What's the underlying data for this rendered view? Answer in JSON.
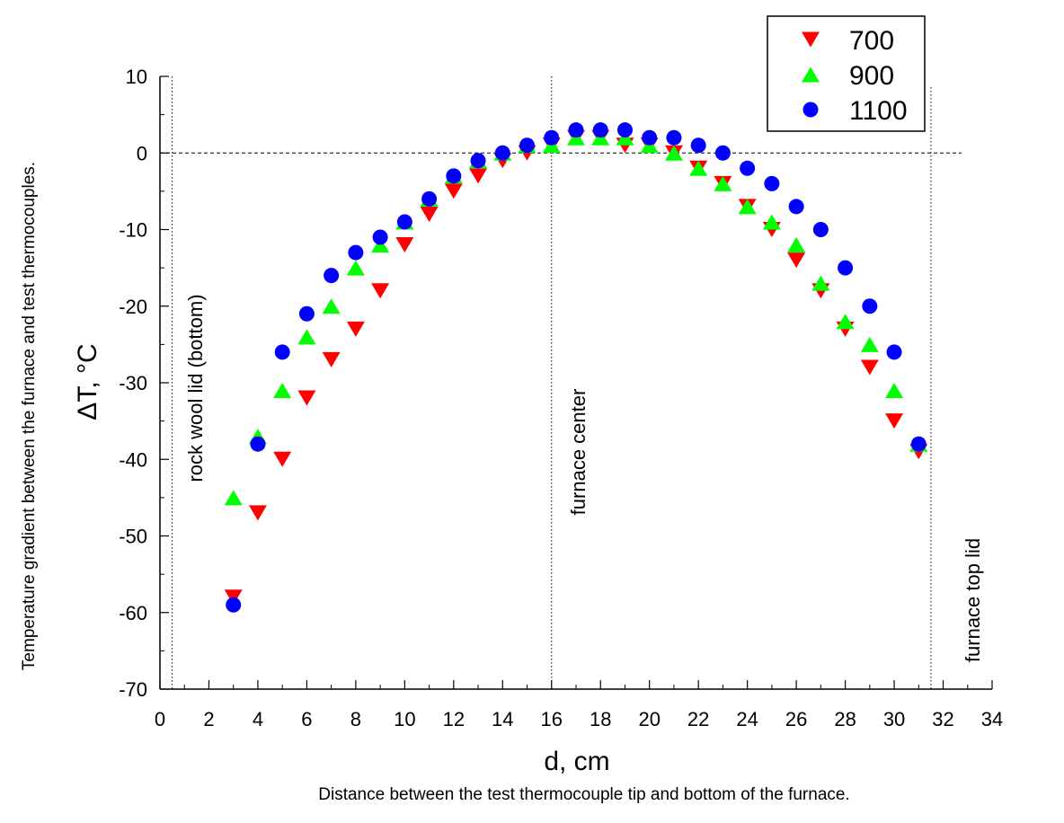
{
  "chart_data": {
    "type": "scatter",
    "xlabel": "d, cm",
    "ylabel": "ΔT, °C",
    "x_caption": "Distance between the test thermocouple tip and bottom of the furnace.",
    "y_caption": "Temperature gradient between the furnace and test thermocouples.",
    "xlim": [
      0,
      34
    ],
    "ylim": [
      -70,
      10
    ],
    "xticks": [
      0,
      2,
      4,
      6,
      8,
      10,
      12,
      14,
      16,
      18,
      20,
      22,
      24,
      26,
      28,
      30,
      32,
      34
    ],
    "yticks": [
      10,
      0,
      -10,
      -20,
      -30,
      -40,
      -50,
      -60,
      -70
    ],
    "grid": false,
    "legend_position": "top-right",
    "reference_lines": [
      {
        "axis": "y",
        "value": 0,
        "style": "dashed"
      },
      {
        "axis": "x",
        "value": 0.5,
        "style": "dotted",
        "label": "rock wool lid (bottom)"
      },
      {
        "axis": "x",
        "value": 16,
        "style": "dotted",
        "label": "furnace center"
      },
      {
        "axis": "x",
        "value": 31.5,
        "style": "dotted",
        "label": "furnace top lid"
      }
    ],
    "x": [
      3,
      4,
      5,
      6,
      7,
      8,
      9,
      10,
      11,
      12,
      13,
      14,
      15,
      16,
      17,
      18,
      19,
      20,
      21,
      22,
      23,
      24,
      25,
      26,
      27,
      28,
      29,
      30,
      31
    ],
    "series": [
      {
        "name": "700",
        "marker": "triangle-down",
        "color": "#ff0000",
        "values": [
          -58,
          -47,
          -40,
          -32,
          -27,
          -23,
          -18,
          -12,
          -8,
          -5,
          -3,
          -1,
          0,
          1,
          2,
          2,
          1,
          1,
          0,
          -2,
          -4,
          -7,
          -10,
          -14,
          -18,
          -23,
          -28,
          -35,
          -39
        ]
      },
      {
        "name": "900",
        "marker": "triangle-up",
        "color": "#00ff00",
        "values": [
          -45,
          -37,
          -31,
          -24,
          -20,
          -15,
          -12,
          -9,
          -6,
          -3,
          -1,
          0,
          1,
          1,
          2,
          2,
          2,
          1,
          0,
          -2,
          -4,
          -7,
          -9,
          -12,
          -17,
          -22,
          -25,
          -31,
          -38
        ]
      },
      {
        "name": "1100",
        "marker": "circle",
        "color": "#0000ff",
        "values": [
          -59,
          -38,
          -26,
          -21,
          -16,
          -13,
          -11,
          -9,
          -6,
          -3,
          -1,
          0,
          1,
          2,
          3,
          3,
          3,
          2,
          2,
          1,
          0,
          -2,
          -4,
          -7,
          -10,
          -15,
          -20,
          -26,
          -38
        ]
      }
    ]
  }
}
